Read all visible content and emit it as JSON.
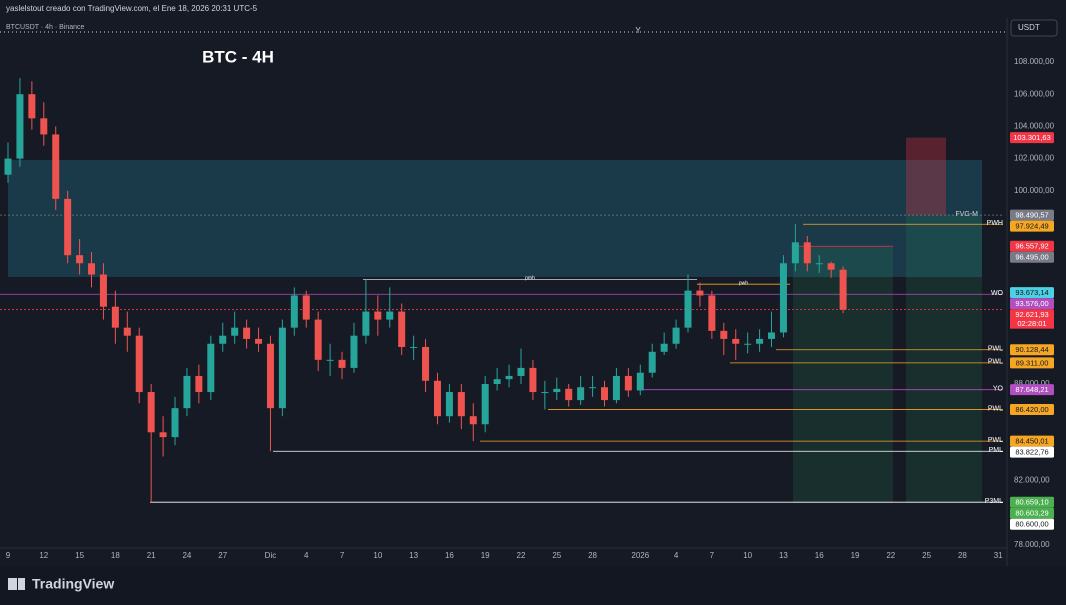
{
  "header": {
    "author_line": "yaslelstout creado con TradingView.com, el Ene 18, 2026 20:31 UTC-5",
    "symbol_line": "BTCUSDT · 4h · Binance",
    "marker": "Y",
    "currency": "USDT"
  },
  "footer": {
    "brand": "TradingView"
  },
  "chart_data": {
    "type": "candlestick",
    "title": "BTC - 4H",
    "categories": [
      "9",
      null,
      null,
      "12",
      null,
      null,
      "15",
      null,
      null,
      "18",
      null,
      null,
      "21",
      null,
      null,
      "24",
      null,
      null,
      "27",
      null,
      null,
      null,
      "Dic",
      null,
      null,
      "4",
      null,
      null,
      "7",
      null,
      null,
      "10",
      null,
      null,
      "13",
      null,
      null,
      "16",
      null,
      null,
      "19",
      null,
      null,
      "22",
      null,
      null,
      "25",
      null,
      null,
      "28",
      null,
      null,
      null,
      "2026",
      null,
      null,
      "4",
      null,
      null,
      "7",
      null,
      null,
      "10",
      null,
      null,
      "13",
      null,
      null,
      "16",
      null,
      null,
      "19",
      null,
      null,
      "22",
      null,
      null,
      "25",
      null,
      null,
      "28",
      null,
      null,
      "31"
    ],
    "open": [
      101000,
      102000,
      106000,
      104500,
      103500,
      99500,
      96000,
      95500,
      94800,
      92800,
      91500,
      91000,
      87500,
      85000,
      84700,
      86500,
      88500,
      87500,
      90500,
      91000,
      91500,
      90800,
      90500,
      86500,
      91500,
      93500,
      92000,
      89500,
      89500,
      89000,
      91000,
      92500,
      92000,
      92500,
      90300,
      90300,
      88200,
      86000,
      87500,
      86000,
      85500,
      88000,
      88300,
      88500,
      89000,
      87500,
      87500,
      87700,
      87000,
      87800,
      87800,
      87000,
      88500,
      87600,
      88700,
      90000,
      90500,
      91500,
      93800,
      93500,
      91300,
      90800,
      90500,
      90500,
      90800,
      91200,
      95500,
      96800,
      95500,
      95500,
      95100,
      null,
      null,
      null,
      null,
      null,
      null,
      null,
      null,
      null,
      null,
      null,
      null,
      null
    ],
    "high": [
      103000,
      107000,
      106800,
      105500,
      104000,
      100000,
      97000,
      96200,
      95500,
      93800,
      92500,
      91500,
      88000,
      86000,
      87200,
      89000,
      89200,
      91000,
      91800,
      92500,
      92000,
      91500,
      91000,
      92000,
      94000,
      93800,
      92500,
      90500,
      90000,
      91800,
      94500,
      93500,
      94000,
      93000,
      91000,
      90800,
      88700,
      88000,
      88000,
      86800,
      88500,
      89000,
      89200,
      90200,
      89500,
      88200,
      88400,
      88000,
      88500,
      88500,
      88200,
      89000,
      89000,
      89200,
      90500,
      91200,
      92000,
      94800,
      94300,
      93800,
      91800,
      91400,
      91200,
      91400,
      92500,
      96000,
      97924,
      97200,
      96000,
      95600,
      95300,
      null,
      null,
      null,
      null,
      null,
      null,
      null,
      null,
      null,
      null,
      null,
      null,
      null
    ],
    "low": [
      100500,
      101500,
      103800,
      102800,
      98800,
      95500,
      94800,
      94000,
      92000,
      90500,
      90000,
      86800,
      80659,
      83500,
      84200,
      86000,
      86800,
      87000,
      90000,
      90500,
      90200,
      90000,
      83823,
      86000,
      91000,
      91500,
      88800,
      88500,
      88300,
      88700,
      90500,
      91000,
      91500,
      89800,
      89500,
      87500,
      85500,
      85600,
      85200,
      84450,
      85000,
      87600,
      87800,
      88000,
      87000,
      86420,
      87000,
      86600,
      86700,
      87200,
      86600,
      86800,
      87200,
      87300,
      88400,
      89800,
      90200,
      91200,
      92800,
      90800,
      89800,
      89500,
      89900,
      90000,
      90300,
      90900,
      95000,
      95000,
      94900,
      94600,
      92400,
      null,
      null,
      null,
      null,
      null,
      null,
      null,
      null,
      null,
      null,
      null,
      null,
      null
    ],
    "close": [
      102000,
      106000,
      104500,
      103500,
      99500,
      96000,
      95500,
      94800,
      92800,
      91500,
      91000,
      87500,
      85000,
      84700,
      86500,
      88500,
      87500,
      90500,
      91000,
      91500,
      90800,
      90500,
      86500,
      91500,
      93500,
      92000,
      89500,
      89500,
      89000,
      91000,
      92500,
      92000,
      92500,
      90300,
      90300,
      88200,
      86000,
      87500,
      86000,
      85500,
      88000,
      88300,
      88500,
      89000,
      87500,
      87500,
      87700,
      87000,
      87800,
      87800,
      87000,
      88500,
      87600,
      88700,
      90000,
      90500,
      91500,
      93800,
      93500,
      91300,
      90800,
      90500,
      90500,
      90800,
      91200,
      95500,
      96800,
      95500,
      95500,
      95100,
      92622,
      null,
      null,
      null,
      null,
      null,
      null,
      null,
      null,
      null,
      null,
      null,
      null,
      null
    ],
    "up_color": "#26a69a",
    "down_color": "#ef5350",
    "ylim": [
      76882,
      109677
    ],
    "yticks": [
      {
        "value": 108000,
        "label": "108.000,00"
      },
      {
        "value": 106000,
        "label": "106.000,00"
      },
      {
        "value": 104000,
        "label": "104.000,00"
      },
      {
        "value": 102000,
        "label": "102.000,00"
      },
      {
        "value": 100000,
        "label": "100.000,00"
      },
      {
        "value": 88000,
        "label": "88.000,00"
      },
      {
        "value": 82000,
        "label": "82.000,00"
      },
      {
        "value": 78000,
        "label": "78.000,00"
      }
    ],
    "grid": false,
    "boxes": [
      {
        "top": 101913,
        "bottom": 94646,
        "color": "rgba(38,120,140,0.35)"
      },
      {
        "top": 103301.63,
        "bottom": 98490.57,
        "color": "rgba(242,54,69,0.3)"
      },
      {
        "top": 96495,
        "bottom": 80603.29,
        "color": "rgba(38,166,91,0.15)"
      },
      {
        "top": 98490.57,
        "bottom": 80600,
        "color": "rgba(38,166,91,0.15)"
      }
    ],
    "swing_lines": [
      {
        "label": "pmh",
        "value": 94500,
        "color": "#d1d4dc"
      },
      {
        "label": "pwh",
        "value": 94200,
        "color": "#f5a623"
      }
    ],
    "levels": [
      {
        "label": "FVG-M",
        "value": 98490.57,
        "value_label": "98.490,57",
        "color": "#787b86"
      },
      {
        "label": "PWH",
        "value": 97924.49,
        "value_label": "97.924,49",
        "color": "#f5a623"
      },
      {
        "value": 96557.92,
        "value_label": "96.557,92",
        "color": "#f23645"
      },
      {
        "value": 96495,
        "value_label": "96.495,00",
        "color": "#787b86"
      },
      {
        "value": 93673.14,
        "value_label": "93.673,14",
        "color": "#4dd0e1"
      },
      {
        "label": "WO",
        "value": 93576,
        "value_label": "93.576,00",
        "color": "#b04fc0"
      },
      {
        "value": 92621.93,
        "value_label": "92.621,93",
        "countdown": "02:28:01",
        "color": "#f23645"
      },
      {
        "value": 103301.63,
        "value_label": "103.301,63",
        "color": "#f23645"
      },
      {
        "label": "PWL",
        "value": 90128.44,
        "value_label": "90.128,44",
        "color": "#f5a623"
      },
      {
        "label": "PWL",
        "value": 89311,
        "value_label": "89.311,00",
        "color": "#f5a623"
      },
      {
        "label": "YO",
        "value": 87648.21,
        "value_label": "87.648,21",
        "color": "#b04fc0"
      },
      {
        "label": "PWL",
        "value": 86420,
        "value_label": "86.420,00",
        "color": "#f5a623"
      },
      {
        "label": "PWL",
        "value": 84450.01,
        "value_label": "84.450,01",
        "color": "#f5a623"
      },
      {
        "label": "PML",
        "value": 83822.76,
        "value_label": "83.822,76",
        "color": "#ffffff"
      },
      {
        "label": "P3ML",
        "value": 80659.1,
        "value_label": "80.659,10",
        "color": "#4caf50"
      },
      {
        "value": 80603.29,
        "value_label": "80.603,29",
        "color": "#4caf50"
      },
      {
        "value": 80600,
        "value_label": "80.600,00",
        "color": "#ffffff"
      }
    ]
  }
}
